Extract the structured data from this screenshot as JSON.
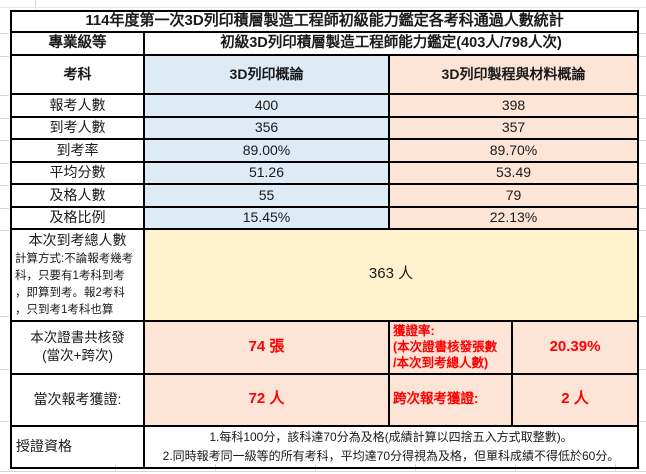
{
  "colors": {
    "blue": "#DDEBF7",
    "peach": "#FCE4D6",
    "yellow": "#FFF2CC",
    "red": "#FF0000",
    "border": "#000000",
    "gridline": "#D6D6D6"
  },
  "table": {
    "title": "114年度第一次3D列印積層製造工程師初級能力鑑定各考科通過人數統計",
    "level": {
      "label": "專業級等",
      "value": "初級3D列印積層製造工程師能力鑑定(403人/798人次)"
    },
    "subjects": {
      "label": "考科",
      "col1": "3D列印概論",
      "col2": "3D列印製程與材料概論"
    },
    "rows": [
      {
        "label": "報考人數",
        "v1": "400",
        "v2": "398"
      },
      {
        "label": "到考人數",
        "v1": "356",
        "v2": "357"
      },
      {
        "label": "到考率",
        "v1": "89.00%",
        "v2": "89.70%"
      },
      {
        "label": "平均分數",
        "v1": "51.26",
        "v2": "53.49"
      },
      {
        "label": "及格人數",
        "v1": "55",
        "v2": "79"
      },
      {
        "label": "及格比例",
        "v1": "15.45%",
        "v2": "22.13%"
      }
    ],
    "attendance": {
      "label": "本次到考總人數",
      "note": "計算方式:不論報考幾考\n科，只要有1考科到考\n，即算到考。報2考科\n，只到考1考科也算",
      "value": "363 人"
    },
    "certificate": {
      "label": "本次證書共核發\n(當次+跨次)",
      "count": "74 張",
      "rate_label": "獲證率:\n(本次證書核發張數\n/本次到考總人數)",
      "rate": "20.39%"
    },
    "awards": {
      "current_label": "當次報考獲證:",
      "current_value": "72 人",
      "cross_label": "跨次報考獲證:",
      "cross_value": "2 人"
    },
    "qualification": {
      "label": "授證資格",
      "rule1": "1.每科100分，該科達70分為及格(成績計算以四捨五入方式取整數)。",
      "rule2": "2.同時報考同一級等的所有考科，平均達70分得視為及格，但單科成績不得低於60分。"
    }
  }
}
